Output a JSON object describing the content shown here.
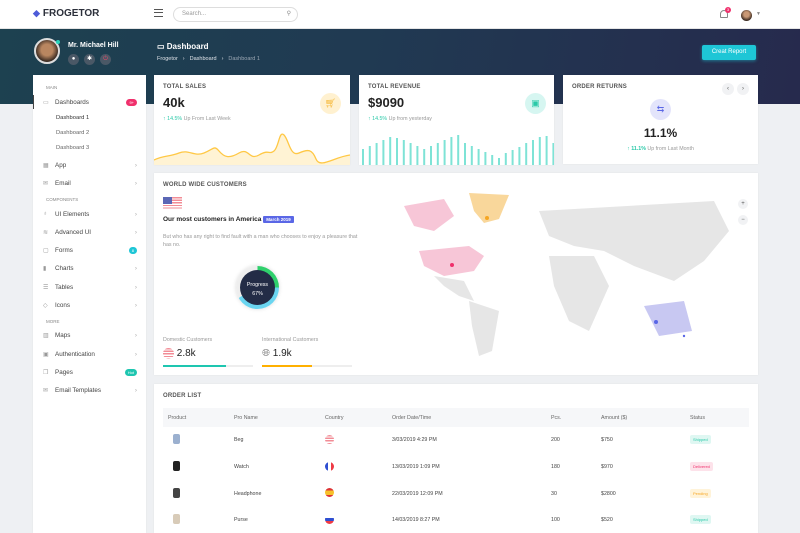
{
  "brand": {
    "name": "FROGETOR"
  },
  "search": {
    "placeholder": "Search..."
  },
  "notifications": {
    "count": "3"
  },
  "user": {
    "name": "Mr. Michael Hill"
  },
  "page": {
    "title": "Dashboard",
    "breadcrumb": [
      "Frogetor",
      "Dashboard",
      "Dashboard 1"
    ],
    "action": "Creat Report"
  },
  "sidebar": {
    "sections": {
      "main": "MAIN",
      "components": "COMPONENTS",
      "more": "MORE"
    },
    "dashboards": {
      "label": "Dashboards",
      "badge": "9+",
      "sub": [
        "Dashboard 1",
        "Dashboard 2",
        "Dashboard 3"
      ]
    },
    "items": [
      {
        "label": "App",
        "icon": "grid-icon"
      },
      {
        "label": "Email",
        "icon": "mail-icon"
      },
      {
        "label": "UI Elements",
        "icon": "gift-icon"
      },
      {
        "label": "Advanced UI",
        "icon": "layers-icon"
      },
      {
        "label": "Forms",
        "icon": "clipboard-icon",
        "badge": "8"
      },
      {
        "label": "Charts",
        "icon": "bar-chart-icon"
      },
      {
        "label": "Tables",
        "icon": "list-icon"
      },
      {
        "label": "Icons",
        "icon": "diamond-icon"
      },
      {
        "label": "Maps",
        "icon": "map-icon"
      },
      {
        "label": "Authentication",
        "icon": "lock-icon"
      },
      {
        "label": "Pages",
        "icon": "copy-icon",
        "badge": "Hot"
      },
      {
        "label": "Email Templates",
        "icon": "mail-template-icon"
      }
    ]
  },
  "stats": {
    "sales": {
      "title": "TOTAL SALES",
      "value": "40k",
      "change": "14.5%",
      "note": "Up From Last Week"
    },
    "revenue": {
      "title": "TOTAL REVENUE",
      "value": "$9090",
      "change": "14.5%",
      "note": "Up from yesterday"
    },
    "returns": {
      "title": "ORDER RETURNS",
      "value": "11.1%",
      "change": "11.1%",
      "note": "Up from Last Month"
    }
  },
  "world": {
    "title": "WORLD WIDE CUSTOMERS",
    "heading": "Our most customers in America",
    "badge": "March 2019",
    "text": "But who has any right to find fault with a man who chooses to enjoy a pleasure that has no.",
    "progress": {
      "label": "Progress",
      "value": "67%",
      "percent": 67
    },
    "domestic": {
      "label": "Domestic Customers",
      "value": "2.8k",
      "fill": 70
    },
    "international": {
      "label": "International Customers",
      "value": "1.9k",
      "fill": 55
    }
  },
  "orders": {
    "title": "ORDER LIST",
    "columns": [
      "Product",
      "Pro Name",
      "Country",
      "Order Date/Time",
      "Pcs.",
      "Amount ($)",
      "Status"
    ],
    "rows": [
      {
        "name": "Beg",
        "country": "us",
        "date": "3/03/2019 4:29 PM",
        "pcs": "200",
        "amount": "$750",
        "status": "Shipped"
      },
      {
        "name": "Watch",
        "country": "fr",
        "date": "13/03/2019 1:09 PM",
        "pcs": "180",
        "amount": "$970",
        "status": "Delivered"
      },
      {
        "name": "Headphone",
        "country": "es",
        "date": "22/03/2019 12:09 PM",
        "pcs": "30",
        "amount": "$2800",
        "status": "Pending"
      },
      {
        "name": "Purse",
        "country": "ru",
        "date": "14/03/2019 8:27 PM",
        "pcs": "100",
        "amount": "$520",
        "status": "Shipped"
      }
    ]
  },
  "colors": {
    "accent": "#1ec6d6",
    "sales": "#ffc845",
    "revenue": "#7ee3d6",
    "returns": "#5a67e6",
    "pink": "#f0306c"
  }
}
